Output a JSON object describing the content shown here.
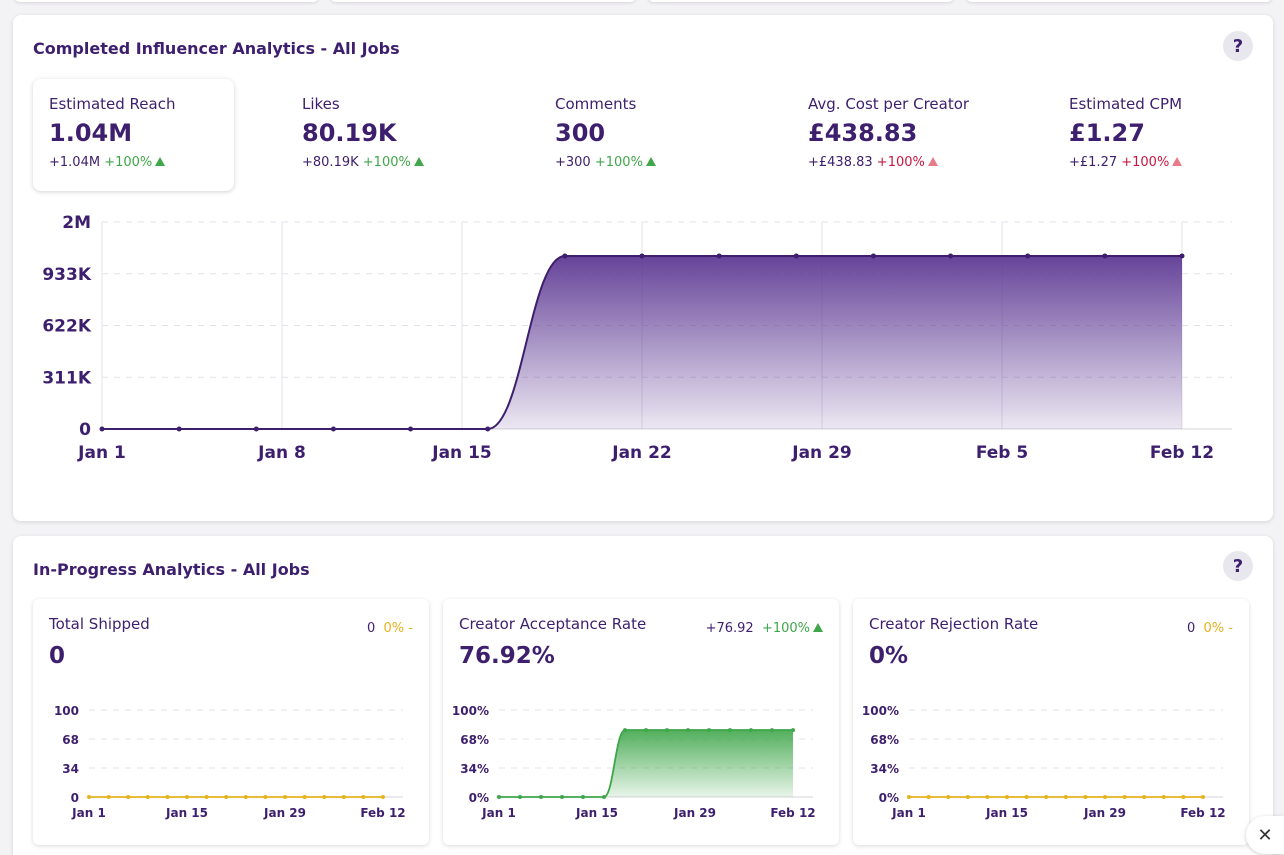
{
  "completed": {
    "title": "Completed Influencer Analytics - All Jobs",
    "help": "?",
    "metrics": [
      {
        "label": "Estimated Reach",
        "value": "1.04M",
        "delta": "+1.04M",
        "pct": "+100%",
        "trend": "up-good"
      },
      {
        "label": "Likes",
        "value": "80.19K",
        "delta": "+80.19K",
        "pct": "+100%",
        "trend": "up-good"
      },
      {
        "label": "Comments",
        "value": "300",
        "delta": "+300",
        "pct": "+100%",
        "trend": "up-good"
      },
      {
        "label": "Avg. Cost per Creator",
        "value": "£438.83",
        "delta": "+£438.83",
        "pct": "+100%",
        "trend": "up-bad"
      },
      {
        "label": "Estimated CPM",
        "value": "£1.27",
        "delta": "+£1.27",
        "pct": "+100%",
        "trend": "up-bad"
      }
    ]
  },
  "in_progress": {
    "title": "In-Progress Analytics - All Jobs",
    "help": "?",
    "cards": [
      {
        "title": "Total Shipped",
        "value": "0",
        "delta": "0",
        "pct": "0%",
        "trend_symbol": "-"
      },
      {
        "title": "Creator Acceptance Rate",
        "value": "76.92%",
        "delta": "+76.92",
        "pct": "+100%",
        "trend_symbol": "▲"
      },
      {
        "title": "Creator Rejection Rate",
        "value": "0%",
        "delta": "0",
        "pct": "0%",
        "trend_symbol": "-"
      }
    ]
  },
  "close_icon": "close-icon",
  "colors": {
    "purple": "#4b2a7b",
    "green": "#3fa64a",
    "red": "#c8163f",
    "yellow": "#e6b21f",
    "pink": "#e87b8a"
  },
  "chart_data": [
    {
      "type": "area",
      "title": "",
      "y_ticks": [
        "2M",
        "933K",
        "622K",
        "311K",
        "0"
      ],
      "x_ticks": [
        "Jan 1",
        "Jan 8",
        "Jan 15",
        "Jan 22",
        "Jan 29",
        "Feb 5",
        "Feb 12"
      ],
      "x_days": [
        0,
        3,
        6,
        9,
        12,
        15,
        18,
        21,
        24,
        27,
        30,
        33,
        36,
        39,
        42
      ],
      "values": [
        0,
        0,
        0,
        0,
        0,
        0,
        1040000,
        1040000,
        1040000,
        1040000,
        1040000,
        1040000,
        1040000,
        1040000,
        1040000
      ],
      "series": [
        {
          "name": "",
          "values": [
            0,
            0,
            0,
            0,
            0,
            0,
            1040000,
            1040000,
            1040000,
            1040000,
            1040000,
            1040000,
            1040000,
            1040000,
            1040000
          ]
        }
      ],
      "ylim": [
        0,
        1244000
      ],
      "grid": true
    },
    {
      "type": "line",
      "title": "",
      "y_ticks": [
        "100",
        "68",
        "34",
        "0"
      ],
      "x_ticks": [
        "Jan 1",
        "Jan 15",
        "Jan 29",
        "Feb 12"
      ],
      "values": [
        0,
        0,
        0,
        0,
        0,
        0,
        0,
        0,
        0,
        0,
        0,
        0,
        0,
        0,
        0,
        0
      ],
      "ylim": [
        0,
        100
      ],
      "color": "#e6b21f"
    },
    {
      "type": "area",
      "title": "",
      "y_ticks": [
        "100%",
        "68%",
        "34%",
        "0%"
      ],
      "x_ticks": [
        "Jan 1",
        "Jan 15",
        "Jan 29",
        "Feb 12"
      ],
      "values": [
        0,
        0,
        0,
        0,
        0,
        0,
        76.92,
        76.92,
        76.92,
        76.92,
        76.92,
        76.92,
        76.92,
        76.92,
        76.92
      ],
      "ylim": [
        0,
        100
      ],
      "color": "#3fa64a"
    },
    {
      "type": "line",
      "title": "",
      "y_ticks": [
        "100%",
        "68%",
        "34%",
        "0%"
      ],
      "x_ticks": [
        "Jan 1",
        "Jan 15",
        "Jan 29",
        "Feb 12"
      ],
      "values": [
        0,
        0,
        0,
        0,
        0,
        0,
        0,
        0,
        0,
        0,
        0,
        0,
        0,
        0,
        0,
        0
      ],
      "ylim": [
        0,
        100
      ],
      "color": "#e6b21f"
    }
  ]
}
